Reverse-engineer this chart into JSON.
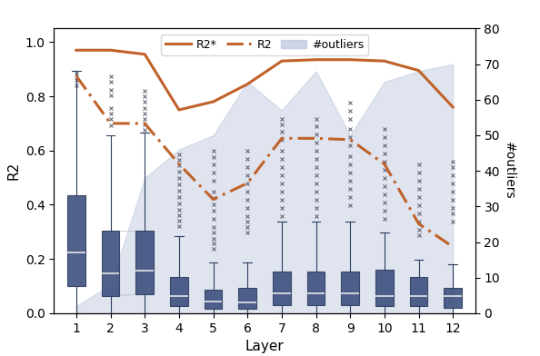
{
  "layers": [
    1,
    2,
    3,
    4,
    5,
    6,
    7,
    8,
    9,
    10,
    11,
    12
  ],
  "R2_star": [
    0.97,
    0.97,
    0.955,
    0.75,
    0.78,
    0.845,
    0.93,
    0.935,
    0.935,
    0.93,
    0.895,
    0.76
  ],
  "R2": [
    0.875,
    0.7,
    0.7,
    0.55,
    0.42,
    0.48,
    0.645,
    0.645,
    0.64,
    0.55,
    0.33,
    0.245
  ],
  "n_outliers": [
    2,
    8,
    38,
    46,
    50,
    65,
    57,
    68,
    50,
    65,
    68,
    70
  ],
  "box_stats": {
    "1": {
      "med": 0.225,
      "q1": 0.1,
      "q3": 0.435,
      "whislo": 0.0,
      "whishi": 0.895,
      "fliers": [
        0.885,
        0.862,
        0.84
      ]
    },
    "2": {
      "med": 0.148,
      "q1": 0.065,
      "q3": 0.305,
      "whislo": 0.0,
      "whishi": 0.655,
      "fliers": [
        0.875,
        0.855,
        0.825,
        0.805,
        0.758,
        0.738,
        0.715,
        0.692
      ]
    },
    "3": {
      "med": 0.158,
      "q1": 0.07,
      "q3": 0.305,
      "whislo": 0.0,
      "whishi": 0.665,
      "fliers": [
        0.82,
        0.8,
        0.78,
        0.758,
        0.738,
        0.715,
        0.695,
        0.675
      ]
    },
    "4": {
      "med": 0.065,
      "q1": 0.025,
      "q3": 0.135,
      "whislo": 0.0,
      "whishi": 0.285,
      "fliers": [
        0.585,
        0.565,
        0.545,
        0.522,
        0.5,
        0.475,
        0.452,
        0.428,
        0.405,
        0.382,
        0.362,
        0.342,
        0.322
      ]
    },
    "5": {
      "med": 0.043,
      "q1": 0.015,
      "q3": 0.088,
      "whislo": 0.0,
      "whishi": 0.188,
      "fliers": [
        0.598,
        0.575,
        0.548,
        0.518,
        0.488,
        0.45,
        0.425,
        0.402,
        0.378,
        0.348,
        0.318,
        0.298,
        0.275,
        0.258,
        0.238
      ]
    },
    "6": {
      "med": 0.04,
      "q1": 0.015,
      "q3": 0.093,
      "whislo": 0.0,
      "whishi": 0.188,
      "fliers": [
        0.598,
        0.568,
        0.538,
        0.508,
        0.478,
        0.448,
        0.418,
        0.388,
        0.358,
        0.338,
        0.318,
        0.298
      ]
    },
    "7": {
      "med": 0.075,
      "q1": 0.03,
      "q3": 0.155,
      "whislo": 0.0,
      "whishi": 0.338,
      "fliers": [
        0.718,
        0.695,
        0.668,
        0.638,
        0.598,
        0.568,
        0.538,
        0.508,
        0.478,
        0.448,
        0.418,
        0.388,
        0.358
      ]
    },
    "8": {
      "med": 0.075,
      "q1": 0.03,
      "q3": 0.155,
      "whislo": 0.0,
      "whishi": 0.338,
      "fliers": [
        0.715,
        0.688,
        0.658,
        0.628,
        0.598,
        0.568,
        0.538,
        0.508,
        0.478,
        0.448,
        0.418,
        0.388,
        0.358
      ]
    },
    "9": {
      "med": 0.075,
      "q1": 0.03,
      "q3": 0.155,
      "whislo": 0.0,
      "whishi": 0.338,
      "fliers": [
        0.778,
        0.748,
        0.718,
        0.678,
        0.648,
        0.618,
        0.578,
        0.548,
        0.518,
        0.488,
        0.458,
        0.428,
        0.398
      ]
    },
    "10": {
      "med": 0.065,
      "q1": 0.025,
      "q3": 0.162,
      "whislo": 0.0,
      "whishi": 0.298,
      "fliers": [
        0.678,
        0.648,
        0.618,
        0.588,
        0.558,
        0.528,
        0.498,
        0.468,
        0.438,
        0.408,
        0.378,
        0.348
      ]
    },
    "11": {
      "med": 0.065,
      "q1": 0.025,
      "q3": 0.135,
      "whislo": 0.0,
      "whishi": 0.198,
      "fliers": [
        0.548,
        0.518,
        0.488,
        0.458,
        0.428,
        0.398,
        0.368,
        0.338,
        0.308,
        0.288
      ]
    },
    "12": {
      "med": 0.065,
      "q1": 0.02,
      "q3": 0.093,
      "whislo": 0.0,
      "whishi": 0.182,
      "fliers": [
        0.558,
        0.538,
        0.508,
        0.478,
        0.448,
        0.418,
        0.388,
        0.368,
        0.338
      ]
    }
  },
  "box_color": "#2d3e5e",
  "box_face_color": "#3d5080",
  "median_color": "#e8e8e8",
  "outlier_color": "#555566",
  "R2_star_color": "#c0622a",
  "R2_color": "#c0622a",
  "fill_color": "#b8c4dc",
  "fill_alpha": 0.45,
  "ylim": [
    0.0,
    1.05
  ],
  "right_ylim": [
    0,
    80
  ],
  "right_yticks": [
    0,
    10,
    20,
    30,
    40,
    50,
    60,
    70,
    80
  ],
  "xlabel": "Layer",
  "ylabel": "R2",
  "right_ylabel": "#outliers",
  "figwidth": 5.94,
  "figheight": 3.92,
  "dpi": 100
}
